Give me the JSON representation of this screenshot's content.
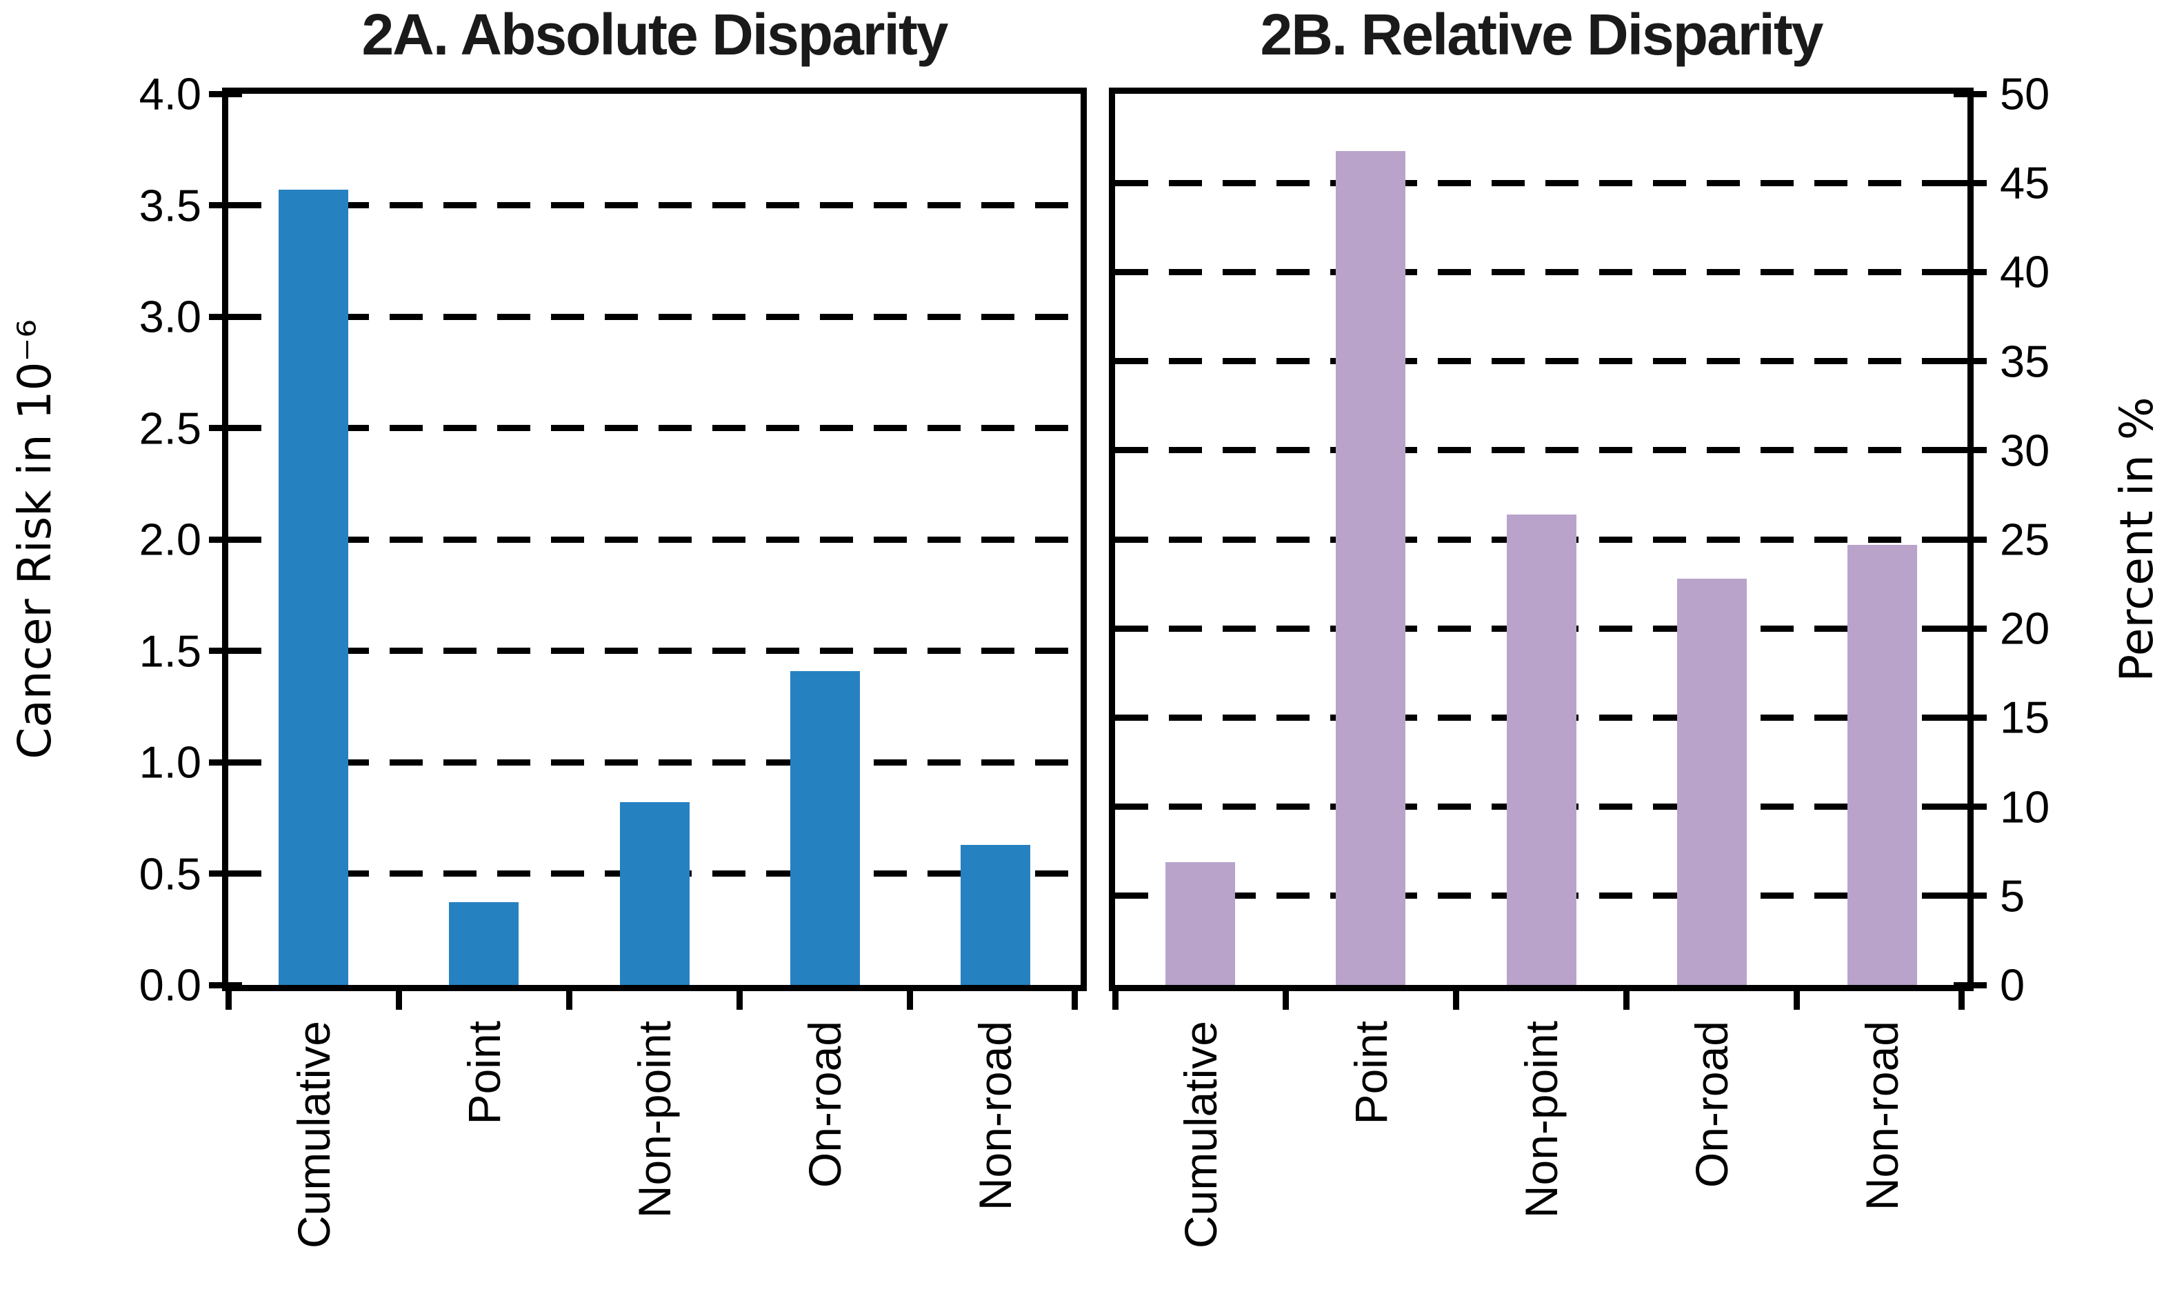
{
  "figure": {
    "background_color": "#FFFFFF",
    "axis_color": "#000000",
    "gridline_style": "dashed"
  },
  "chart_data": [
    {
      "type": "bar",
      "panel": "2A",
      "title": "2A. Absolute Disparity",
      "ylabel": "Cancer Risk in 10⁻⁶",
      "axis_side": "left",
      "ylim": [
        0,
        4
      ],
      "tick_step": 0.5,
      "yticks": [
        "0.0",
        "0.5",
        "1.0",
        "1.5",
        "2.0",
        "2.5",
        "3.0",
        "3.5",
        "4.0"
      ],
      "grid": "dashed",
      "legend": "none",
      "bar_color": "#2681C1",
      "categories": [
        "Cumulative",
        "Point",
        "Non-point",
        "On-road",
        "Non-road"
      ],
      "values": [
        3.57,
        0.37,
        0.82,
        1.41,
        0.63
      ]
    },
    {
      "type": "bar",
      "panel": "2B",
      "title": "2B. Relative Disparity",
      "ylabel": "Percent in %",
      "axis_side": "right",
      "ylim": [
        0,
        50
      ],
      "tick_step": 5,
      "yticks": [
        "0",
        "5",
        "10",
        "15",
        "20",
        "25",
        "30",
        "35",
        "40",
        "45",
        "50"
      ],
      "grid": "dashed",
      "legend": "none",
      "bar_color": "#B9A3CB",
      "categories": [
        "Cumulative",
        "Point",
        "Non-point",
        "On-road",
        "Non-road"
      ],
      "values": [
        6.9,
        46.8,
        26.4,
        22.8,
        24.7
      ]
    }
  ]
}
